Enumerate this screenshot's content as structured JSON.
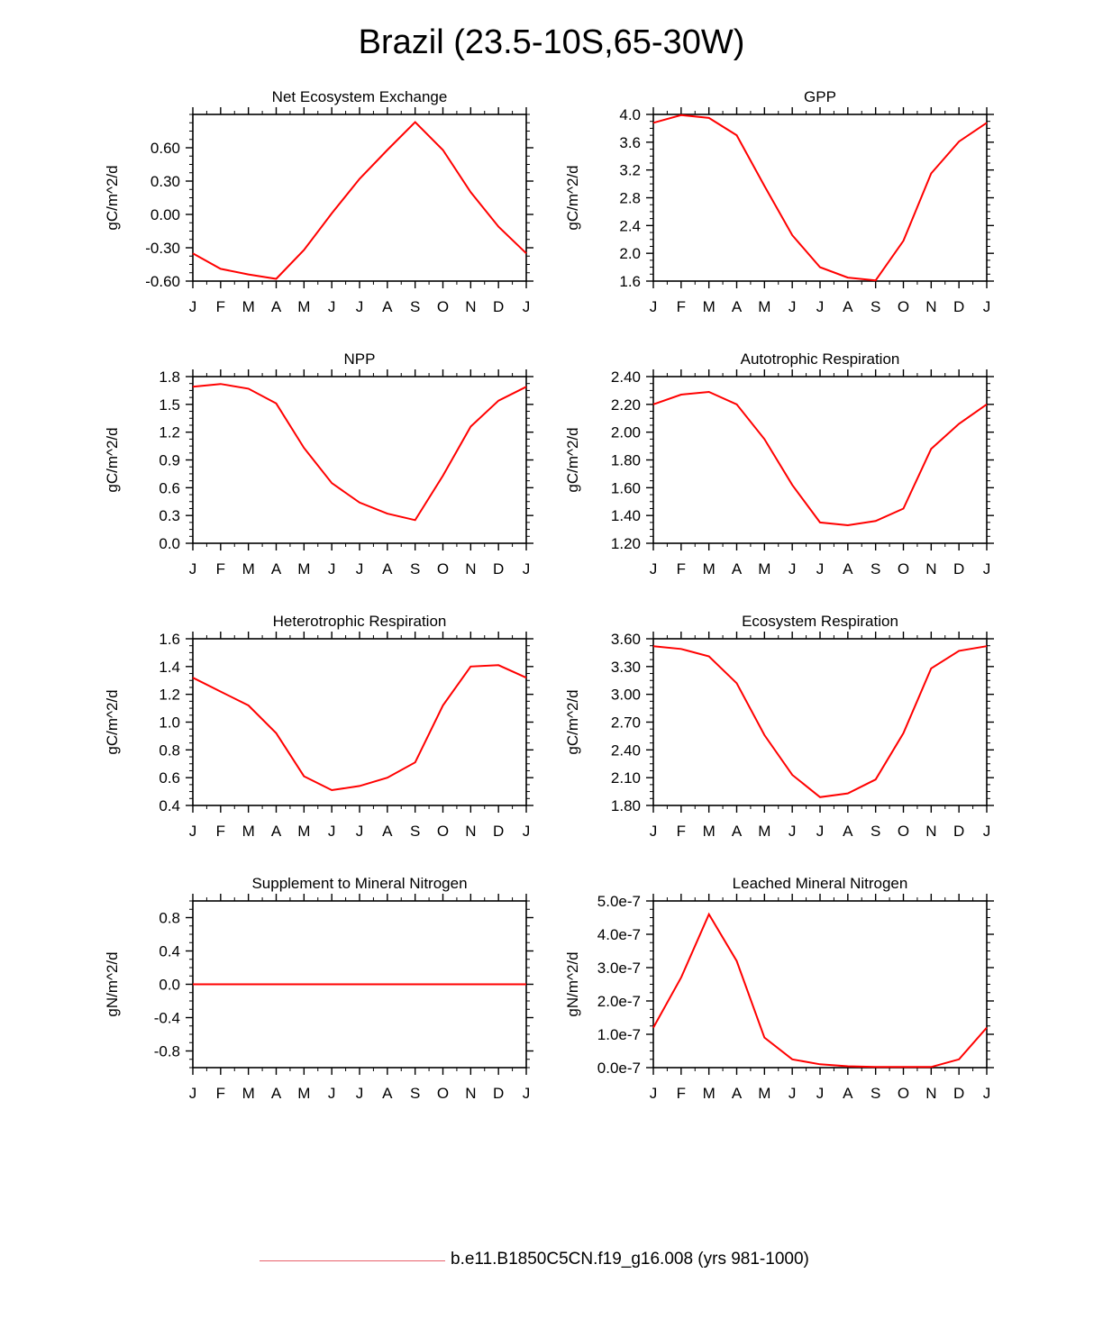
{
  "title": "Brazil (23.5-10S,65-30W)",
  "legend": {
    "label": "b.e11.B1850C5CN.f19_g16.008 (yrs 981-1000)",
    "color": "#e8606a"
  },
  "line_color": "#ff0000",
  "chart_data": [
    {
      "type": "line",
      "title": "Net Ecosystem Exchange",
      "ylabel": "gC/m^2/d",
      "categories": [
        "J",
        "F",
        "M",
        "A",
        "M",
        "J",
        "J",
        "A",
        "S",
        "O",
        "N",
        "D",
        "J"
      ],
      "yticks": [
        "-0.60",
        "-0.30",
        "0.00",
        "0.30",
        "0.60"
      ],
      "ylim": [
        -0.6,
        0.9
      ],
      "values": [
        -0.35,
        -0.49,
        -0.54,
        -0.58,
        -0.32,
        0.01,
        0.32,
        0.58,
        0.83,
        0.58,
        0.2,
        -0.11,
        -0.35
      ]
    },
    {
      "type": "line",
      "title": "GPP",
      "ylabel": "gC/m^2/d",
      "categories": [
        "J",
        "F",
        "M",
        "A",
        "M",
        "J",
        "J",
        "A",
        "S",
        "O",
        "N",
        "D",
        "J"
      ],
      "yticks": [
        "1.6",
        "2.0",
        "2.4",
        "2.8",
        "3.2",
        "3.6",
        "4.0"
      ],
      "ylim": [
        1.6,
        4.0
      ],
      "values": [
        3.88,
        3.99,
        3.95,
        3.7,
        2.97,
        2.26,
        1.8,
        1.65,
        1.61,
        2.18,
        3.15,
        3.61,
        3.88
      ]
    },
    {
      "type": "line",
      "title": "NPP",
      "ylabel": "gC/m^2/d",
      "categories": [
        "J",
        "F",
        "M",
        "A",
        "M",
        "J",
        "J",
        "A",
        "S",
        "O",
        "N",
        "D",
        "J"
      ],
      "yticks": [
        "0.0",
        "0.3",
        "0.6",
        "0.9",
        "1.2",
        "1.5",
        "1.8"
      ],
      "ylim": [
        0.0,
        1.8
      ],
      "values": [
        1.69,
        1.72,
        1.67,
        1.51,
        1.03,
        0.65,
        0.44,
        0.32,
        0.25,
        0.73,
        1.26,
        1.54,
        1.69
      ]
    },
    {
      "type": "line",
      "title": "Autotrophic Respiration",
      "ylabel": "gC/m^2/d",
      "categories": [
        "J",
        "F",
        "M",
        "A",
        "M",
        "J",
        "J",
        "A",
        "S",
        "O",
        "N",
        "D",
        "J"
      ],
      "yticks": [
        "1.20",
        "1.40",
        "1.60",
        "1.80",
        "2.00",
        "2.20",
        "2.40"
      ],
      "ylim": [
        1.2,
        2.4
      ],
      "values": [
        2.2,
        2.27,
        2.29,
        2.2,
        1.95,
        1.62,
        1.35,
        1.33,
        1.36,
        1.45,
        1.88,
        2.06,
        2.2
      ]
    },
    {
      "type": "line",
      "title": "Heterotrophic Respiration",
      "ylabel": "gC/m^2/d",
      "categories": [
        "J",
        "F",
        "M",
        "A",
        "M",
        "J",
        "J",
        "A",
        "S",
        "O",
        "N",
        "D",
        "J"
      ],
      "yticks": [
        "0.4",
        "0.6",
        "0.8",
        "1.0",
        "1.2",
        "1.4",
        "1.6"
      ],
      "ylim": [
        0.4,
        1.6
      ],
      "values": [
        1.32,
        1.22,
        1.12,
        0.92,
        0.61,
        0.51,
        0.54,
        0.6,
        0.71,
        1.12,
        1.4,
        1.41,
        1.32
      ]
    },
    {
      "type": "line",
      "title": "Ecosystem Respiration",
      "ylabel": "gC/m^2/d",
      "categories": [
        "J",
        "F",
        "M",
        "A",
        "M",
        "J",
        "J",
        "A",
        "S",
        "O",
        "N",
        "D",
        "J"
      ],
      "yticks": [
        "1.80",
        "2.10",
        "2.40",
        "2.70",
        "3.00",
        "3.30",
        "3.60"
      ],
      "ylim": [
        1.8,
        3.6
      ],
      "values": [
        3.52,
        3.49,
        3.41,
        3.12,
        2.56,
        2.13,
        1.89,
        1.93,
        2.08,
        2.58,
        3.28,
        3.47,
        3.52
      ]
    },
    {
      "type": "line",
      "title": "Supplement to Mineral Nitrogen",
      "ylabel": "gN/m^2/d",
      "categories": [
        "J",
        "F",
        "M",
        "A",
        "M",
        "J",
        "J",
        "A",
        "S",
        "O",
        "N",
        "D",
        "J"
      ],
      "yticks": [
        "-0.8",
        "-0.4",
        "0.0",
        "0.4",
        "0.8"
      ],
      "ylim": [
        -1.0,
        1.0
      ],
      "values": [
        0,
        0,
        0,
        0,
        0,
        0,
        0,
        0,
        0,
        0,
        0,
        0,
        0
      ]
    },
    {
      "type": "line",
      "title": "Leached Mineral Nitrogen",
      "ylabel": "gN/m^2/d",
      "categories": [
        "J",
        "F",
        "M",
        "A",
        "M",
        "J",
        "J",
        "A",
        "S",
        "O",
        "N",
        "D",
        "J"
      ],
      "yticks": [
        "0.0e-7",
        "1.0e-7",
        "2.0e-7",
        "3.0e-7",
        "4.0e-7",
        "5.0e-7"
      ],
      "ylim": [
        0,
        5e-07
      ],
      "values": [
        1.2e-07,
        2.7e-07,
        4.6e-07,
        3.2e-07,
        9e-08,
        2.5e-08,
        1e-08,
        4e-09,
        2e-09,
        2e-09,
        2e-09,
        2.5e-08,
        1.2e-07
      ]
    }
  ]
}
